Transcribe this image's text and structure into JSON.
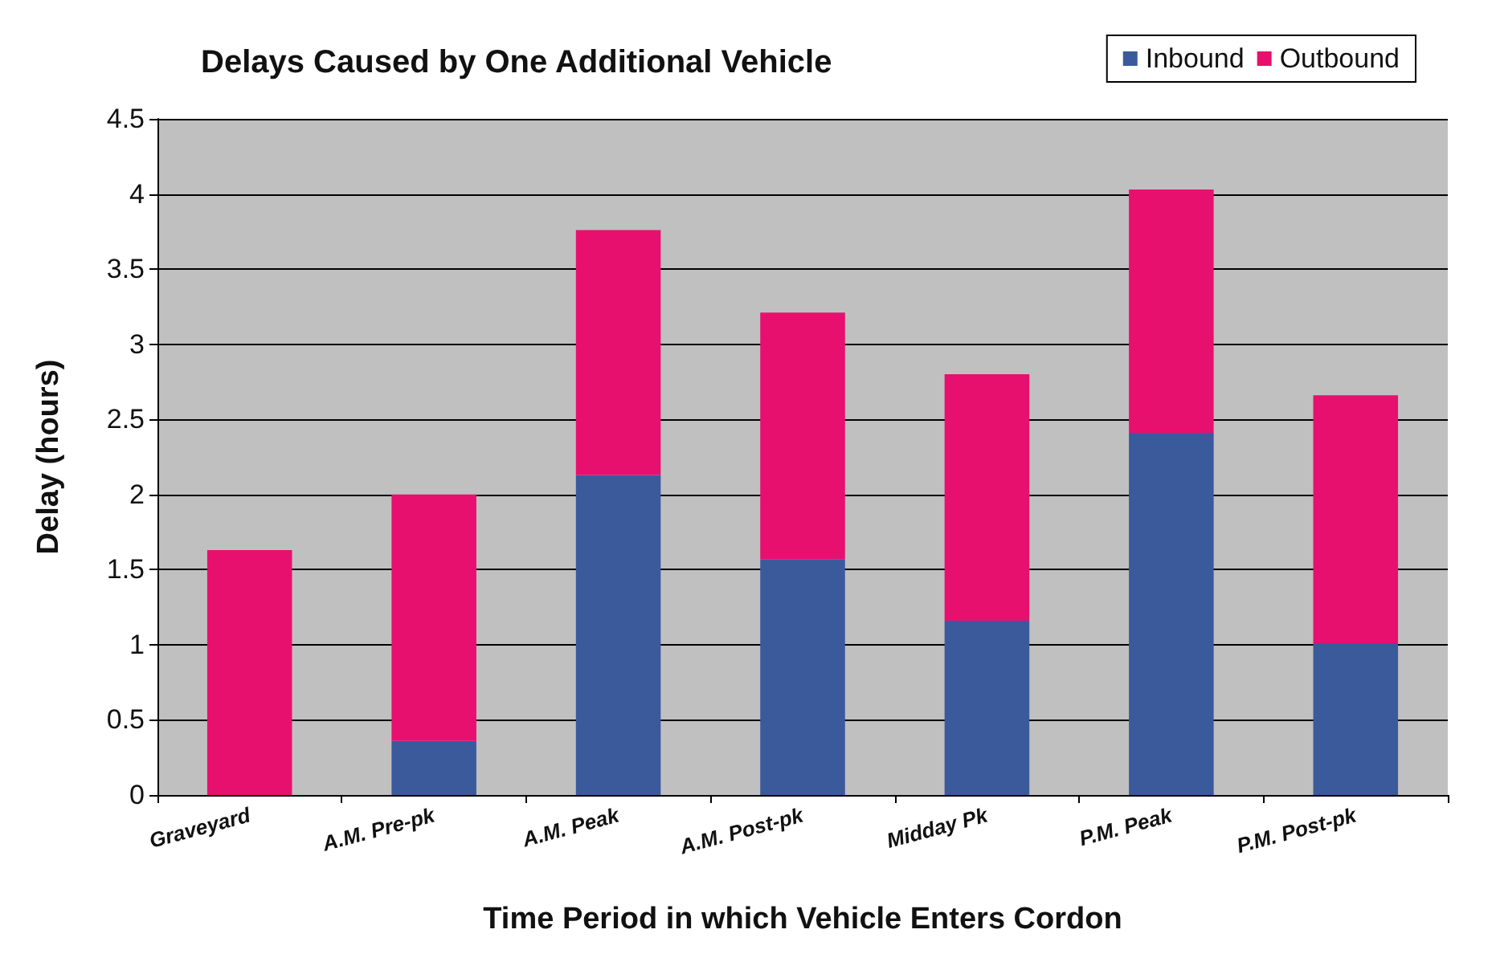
{
  "chart_data": {
    "type": "bar",
    "title": "Delays Caused by One Additional Vehicle",
    "xlabel": "Time Period in which Vehicle Enters Cordon",
    "ylabel": "Delay (hours)",
    "categories": [
      "Graveyard",
      "A.M. Pre-pk",
      "A.M. Peak",
      "A.M. Post-pk",
      "Midday Pk",
      "P.M. Peak",
      "P.M. Post-pk"
    ],
    "stacked": true,
    "series": [
      {
        "name": "Inbound",
        "color": "#3a5a9c",
        "values": [
          0,
          0.36,
          2.13,
          1.57,
          1.16,
          2.41,
          1.01
        ]
      },
      {
        "name": "Outbound",
        "color": "#e8106e",
        "values": [
          1.63,
          1.64,
          1.63,
          1.64,
          1.64,
          1.62,
          1.65
        ]
      }
    ],
    "ylim": [
      0,
      4.5
    ],
    "yticks": [
      0,
      0.5,
      1,
      1.5,
      2,
      2.5,
      3,
      3.5,
      4,
      4.5
    ],
    "grid": "y",
    "legend": "top right"
  }
}
